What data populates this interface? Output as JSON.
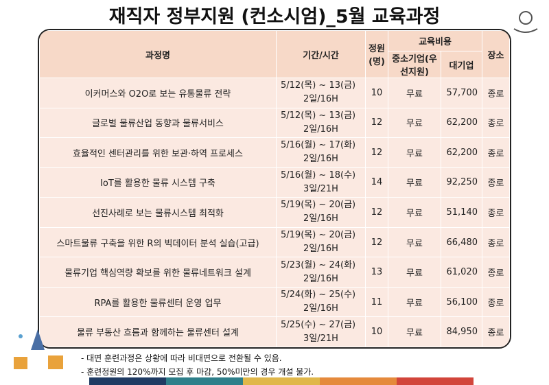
{
  "header": {
    "title": "재직자 정부지원 (컨소시엄)_5월 교육과정"
  },
  "table": {
    "headers": {
      "course": "과정명",
      "period": "기간/시간",
      "capacity": "정원(명)",
      "cost": "교육비용",
      "sme": "중소기업(우선지원)",
      "large": "대기업",
      "location": "장소"
    },
    "rows": [
      [
        "이커머스와 O2O로 보는 유통물류 전략",
        "5/12(목) ~ 13(금)",
        "2일/16H",
        "10",
        "무료",
        "57,700",
        "종로"
      ],
      [
        "글로벌 물류산업 동향과 물류서비스",
        "5/12(목) ~ 13(금)",
        "2일/16H",
        "12",
        "무료",
        "62,200",
        "종로"
      ],
      [
        "효율적인 센터관리를 위한 보관·하역 프로세스",
        "5/16(월) ~ 17(화)",
        "2일/16H",
        "12",
        "무료",
        "62,200",
        "종로"
      ],
      [
        "IoT를 활용한 물류 시스템 구축",
        "5/16(월) ~ 18(수)",
        "3일/21H",
        "14",
        "무료",
        "92,250",
        "종로"
      ],
      [
        "선진사례로 보는 물류시스템 최적화",
        "5/19(목) ~ 20(금)",
        "2일/16H",
        "12",
        "무료",
        "51,140",
        "종로"
      ],
      [
        "스마트물류 구축을 위한 R의 빅데이터 분석 실습(고급)",
        "5/19(목) ~ 20(금)",
        "2일/16H",
        "12",
        "무료",
        "66,480",
        "종로"
      ],
      [
        "물류기업 핵심역량 확보를 위한 물류네트워크 설계",
        "5/23(월) ~ 24(화)",
        "2일/16H",
        "13",
        "무료",
        "61,020",
        "종로"
      ],
      [
        "RPA를 활용한 물류센터 운영 업무",
        "5/24(화) ~ 25(수)",
        "2일/16H",
        "11",
        "무료",
        "56,100",
        "종로"
      ],
      [
        "물류 부동산 흐름과 함께하는 물류센터 설계",
        "5/25(수) ~ 27(금)",
        "3일/21H",
        "10",
        "무료",
        "84,950",
        "종로"
      ]
    ]
  },
  "notes": [
    "- 대면 훈련과정은 상황에 따라 비대면으로 전환될 수 있음.",
    "- 훈련정원의 120%까지 모집 후 마감, 50%미만의 경우 개설 불가."
  ]
}
